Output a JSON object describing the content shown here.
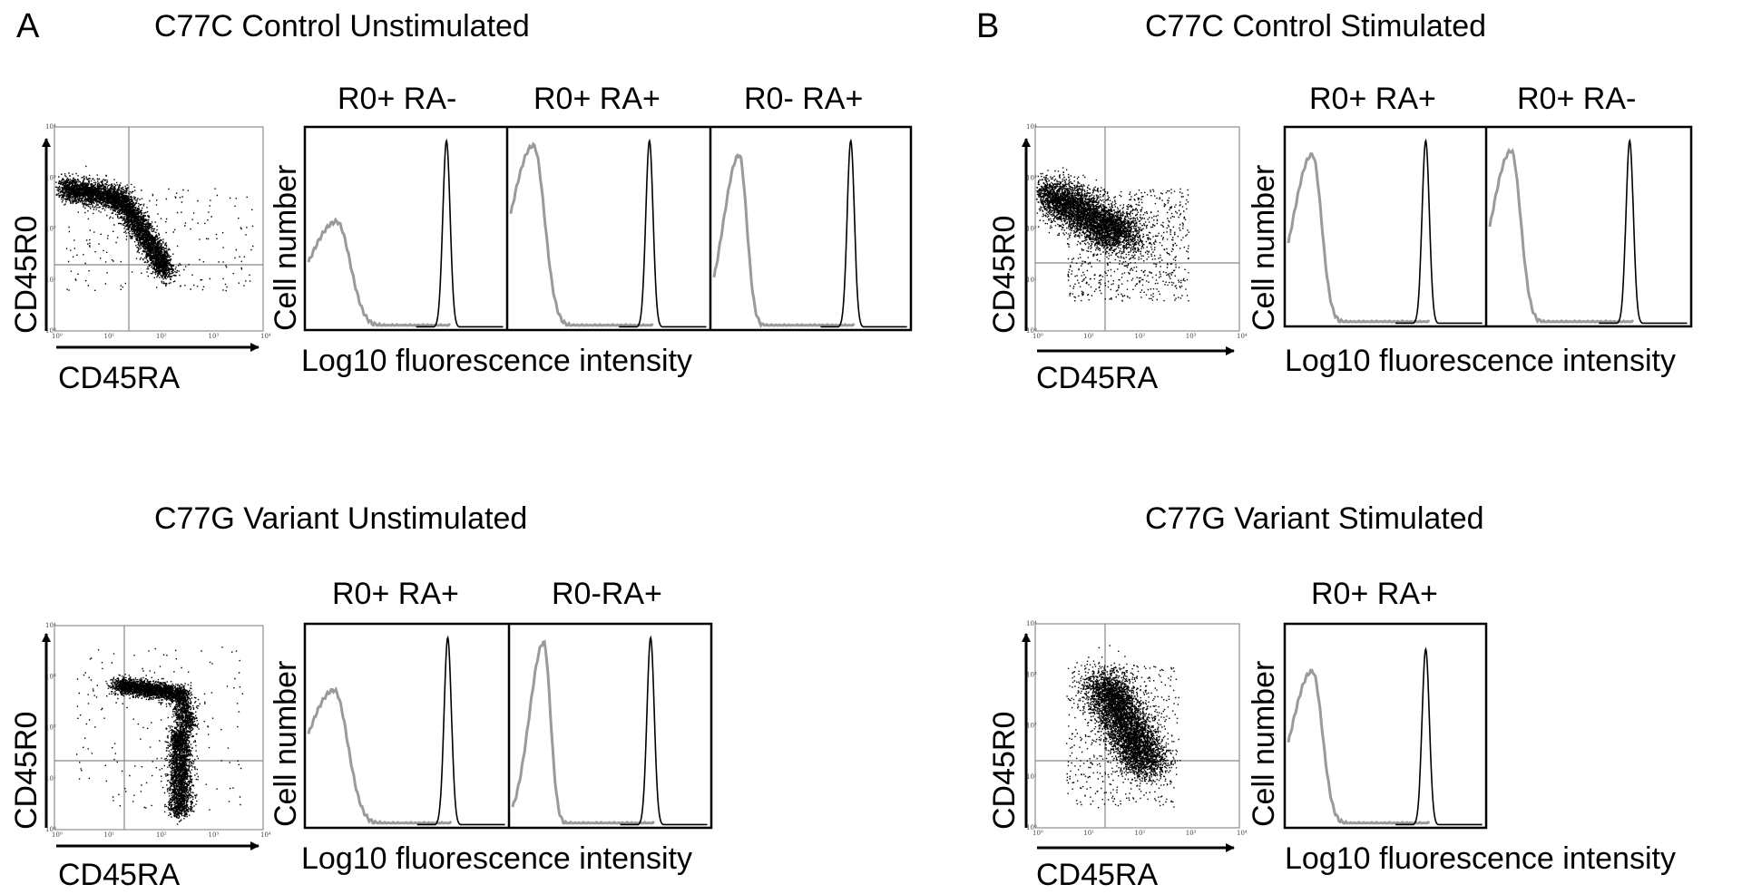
{
  "panels": {
    "A": {
      "letter": "A",
      "rows": [
        {
          "title": "C77C Control Unstimulated",
          "dot_x_label": "CD45RA",
          "dot_y_label": "CD45R0",
          "dot_ticks": [
            "10⁰",
            "10¹",
            "10²",
            "10³",
            "10⁴"
          ],
          "hist_y_label": "Cell number",
          "hist_x_label": "Log10 fluorescence intensity",
          "hist_panels": [
            "R0+ RA-",
            "R0+ RA+",
            "R0- RA+"
          ]
        },
        {
          "title": "C77G Variant Unstimulated",
          "dot_x_label": "CD45RA",
          "dot_y_label": "CD45R0",
          "dot_ticks": [
            "10⁰",
            "10¹",
            "10²",
            "10³",
            "10⁴"
          ],
          "hist_y_label": "Cell number",
          "hist_x_label": "Log10 fluorescence intensity",
          "hist_panels": [
            "R0+ RA+",
            "R0-RA+"
          ]
        }
      ]
    },
    "B": {
      "letter": "B",
      "rows": [
        {
          "title": "C77C Control Stimulated",
          "dot_x_label": "CD45RA",
          "dot_y_label": "CD45R0",
          "dot_ticks": [
            "10⁰",
            "10¹",
            "10²",
            "10³",
            "10⁴"
          ],
          "hist_y_label": "Cell number",
          "hist_x_label": "Log10 fluorescence intensity",
          "hist_panels": [
            "R0+ RA+",
            "R0+ RA-"
          ]
        },
        {
          "title": "C77G Variant Stimulated",
          "dot_x_label": "CD45RA",
          "dot_y_label": "CD45R0",
          "dot_ticks": [
            "10⁰",
            "10¹",
            "10²",
            "10³",
            "10⁴"
          ],
          "hist_y_label": "Cell number",
          "hist_x_label": "Log10 fluorescence intensity",
          "hist_panels": [
            "R0+ RA+"
          ]
        }
      ]
    }
  },
  "colors": {
    "isotype_curve": "#9a9a9a",
    "stained_curve": "#000000",
    "dots": "#000000"
  }
}
